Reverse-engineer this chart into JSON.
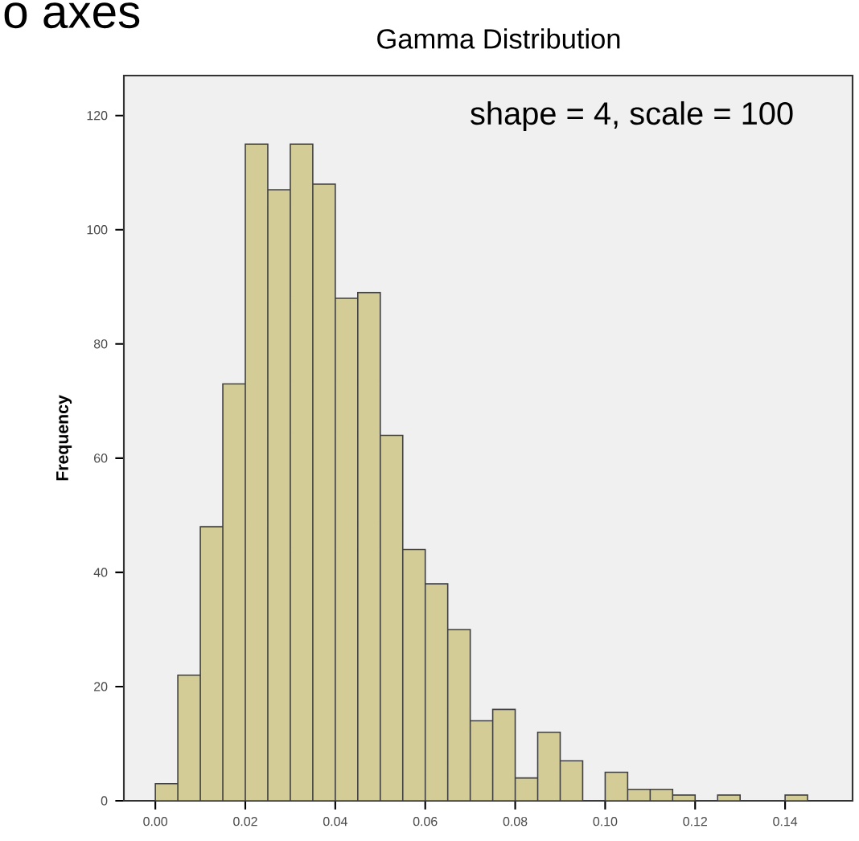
{
  "chart_data": {
    "type": "histogram",
    "title": "Gamma Distribution",
    "ylabel": "Frequency",
    "annotations": [
      "shape = 4, scale = 100",
      "o axes"
    ],
    "bins": [
      0.0,
      0.005,
      0.01,
      0.015,
      0.02,
      0.025,
      0.03,
      0.035,
      0.04,
      0.045,
      0.05,
      0.055,
      0.06,
      0.065,
      0.07,
      0.075,
      0.08,
      0.085,
      0.09,
      0.095,
      0.1,
      0.105,
      0.11,
      0.115,
      0.12,
      0.125,
      0.13,
      0.135,
      0.14,
      0.145
    ],
    "values": [
      3,
      22,
      48,
      73,
      115,
      107,
      115,
      108,
      88,
      89,
      64,
      44,
      38,
      30,
      14,
      16,
      4,
      12,
      7,
      0,
      5,
      2,
      2,
      1,
      0,
      1,
      0,
      0,
      1
    ],
    "color": "#d3cc96",
    "xlim": [
      -0.007,
      0.155
    ],
    "xticks": [
      {
        "value": 0.0,
        "label": "0.00"
      },
      {
        "value": 0.02,
        "label": "0.02"
      },
      {
        "value": 0.04,
        "label": "0.04"
      },
      {
        "value": 0.06,
        "label": "0.06"
      },
      {
        "value": 0.08,
        "label": "0.08"
      },
      {
        "value": 0.1,
        "label": "0.10"
      },
      {
        "value": 0.12,
        "label": "0.12"
      },
      {
        "value": 0.14,
        "label": "0.14"
      }
    ],
    "ylim": [
      0,
      127
    ],
    "yticks": [
      0,
      20,
      40,
      60,
      80,
      100,
      120
    ],
    "grid": false
  }
}
